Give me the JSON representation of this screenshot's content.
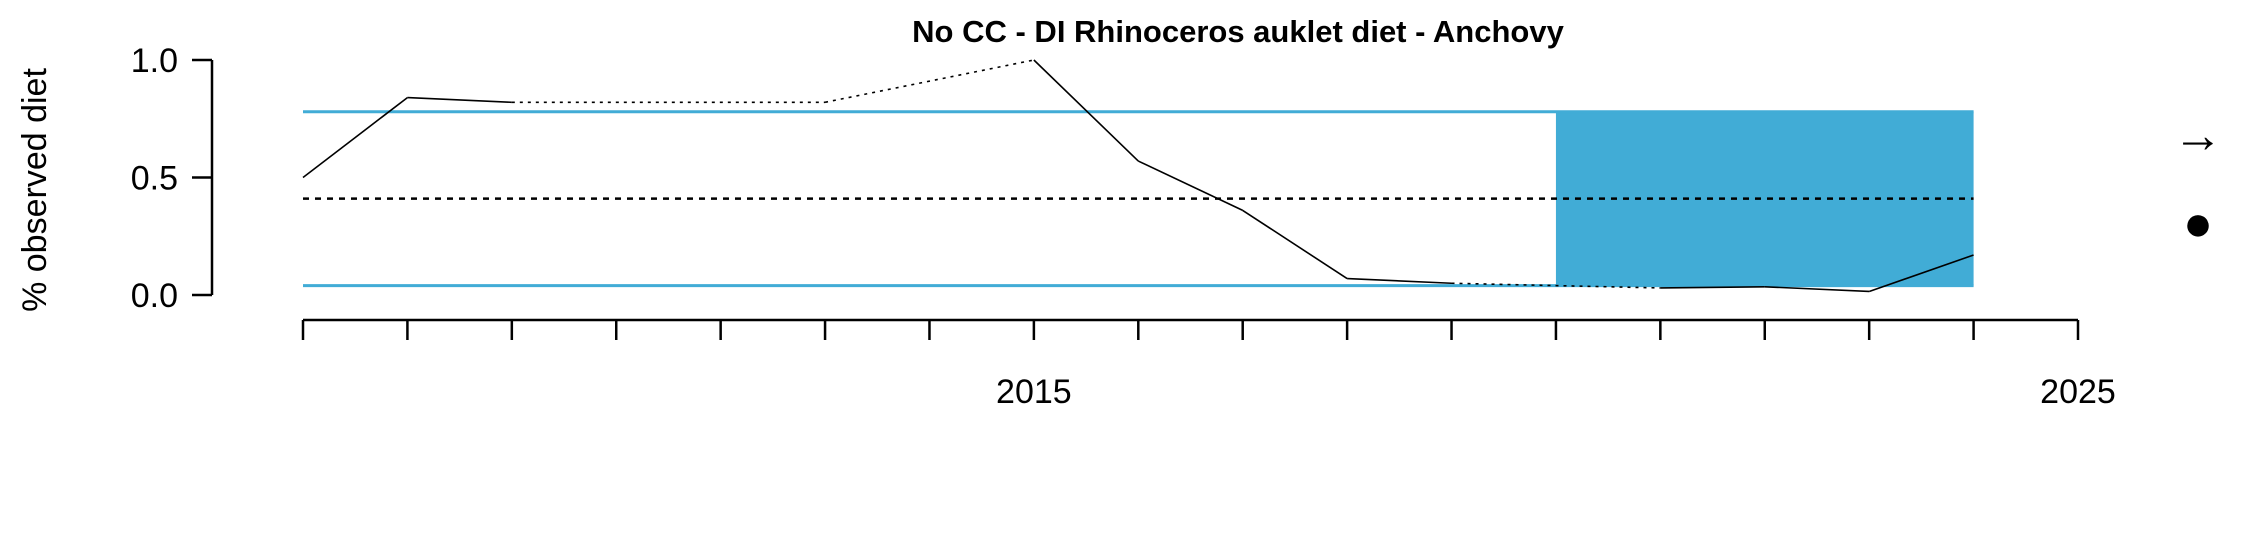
{
  "chart_data": {
    "type": "line",
    "title": "No CC - DI Rhinoceros auklet diet - Anchovy",
    "ylabel": "% observed diet",
    "xlabel": "",
    "xlim": [
      2008,
      2025
    ],
    "ylim": [
      0,
      1
    ],
    "y_ticks": [
      0,
      0.5,
      1
    ],
    "y_tick_labels": [
      "0.0",
      "0.5",
      "1.0"
    ],
    "x_minor_ticks": [
      2008,
      2009,
      2010,
      2011,
      2012,
      2013,
      2014,
      2015,
      2016,
      2017,
      2018,
      2019,
      2020,
      2021,
      2022,
      2023,
      2024,
      2025
    ],
    "x_labeled_ticks": [
      2015,
      2025
    ],
    "x_tick_labels": [
      "2015",
      "2025"
    ],
    "mean": 0.41,
    "upper_sd": 0.78,
    "lower_sd": 0.04,
    "recent_window": [
      2020,
      2024
    ],
    "series": [
      {
        "points": [
          {
            "x": 2008,
            "y": 0.5
          },
          {
            "x": 2009,
            "y": 0.84
          },
          {
            "x": 2010,
            "y": 0.82
          },
          {
            "x": 2011,
            "y": null
          },
          {
            "x": 2012,
            "y": null
          },
          {
            "x": 2013,
            "y": 0.82
          },
          {
            "x": 2014,
            "y": null
          },
          {
            "x": 2015,
            "y": 1.0
          },
          {
            "x": 2016,
            "y": 0.57
          },
          {
            "x": 2017,
            "y": 0.36
          },
          {
            "x": 2018,
            "y": 0.07
          },
          {
            "x": 2019,
            "y": 0.05
          },
          {
            "x": 2020,
            "y": null
          },
          {
            "x": 2021,
            "y": 0.03
          },
          {
            "x": 2022,
            "y": 0.035
          },
          {
            "x": 2023,
            "y": 0.015
          },
          {
            "x": 2024,
            "y": 0.17
          }
        ]
      }
    ],
    "trend_symbol": "→",
    "status_symbol": "●",
    "colors": {
      "band": "#41acd6",
      "line": "#000000",
      "mean_line": "#000000"
    },
    "grid": false,
    "legend": "none"
  }
}
